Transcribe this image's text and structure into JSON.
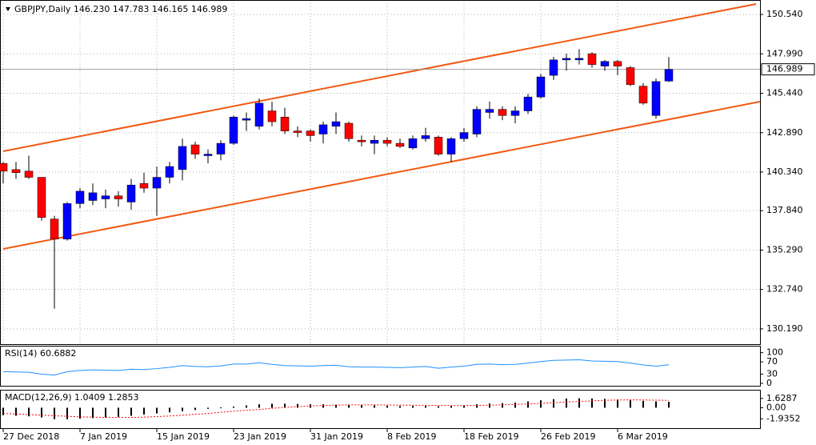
{
  "chart_data": [
    {
      "type": "candlestick",
      "title": "GBPJPY,Daily  146.230 147.783 146.165 146.989",
      "categories": [
        "27 Dec 2018",
        null,
        null,
        null,
        null,
        null,
        "7 Jan 2019",
        null,
        null,
        null,
        null,
        null,
        "15 Jan 2019",
        null,
        null,
        null,
        null,
        null,
        "23 Jan 2019",
        null,
        null,
        null,
        null,
        null,
        "31 Jan 2019",
        null,
        null,
        null,
        null,
        null,
        "8 Feb 2019",
        null,
        null,
        null,
        null,
        null,
        "18 Feb 2019",
        null,
        null,
        null,
        null,
        null,
        "26 Feb 2019",
        null,
        null,
        null,
        null,
        null,
        "6 Mar 2019",
        null,
        null,
        null,
        null
      ],
      "open": [
        140.9,
        140.5,
        140.4,
        140.0,
        137.3,
        136.0,
        138.3,
        138.5,
        138.6,
        138.8,
        138.4,
        139.6,
        139.3,
        140.0,
        140.5,
        142.1,
        141.4,
        141.5,
        142.2,
        143.7,
        143.3,
        144.3,
        143.9,
        143.0,
        143.0,
        142.8,
        143.3,
        143.5,
        142.4,
        142.2,
        142.4,
        142.2,
        141.9,
        142.5,
        142.6,
        141.5,
        142.5,
        142.8,
        144.2,
        144.4,
        144.0,
        144.3,
        145.2,
        146.6,
        147.6,
        147.6,
        148.0,
        147.2,
        147.5,
        147.1,
        145.9,
        144.0,
        146.23
      ],
      "high": [
        141.0,
        141.0,
        141.4,
        140.0,
        137.5,
        138.4,
        139.3,
        139.6,
        139.2,
        139.1,
        139.9,
        140.3,
        140.7,
        141.0,
        142.5,
        142.3,
        141.8,
        142.4,
        144.0,
        144.2,
        145.1,
        144.9,
        144.5,
        143.3,
        143.1,
        143.6,
        144.2,
        143.6,
        142.7,
        142.7,
        142.6,
        142.5,
        142.7,
        143.2,
        142.7,
        142.6,
        143.2,
        144.6,
        144.9,
        144.6,
        144.6,
        145.4,
        146.7,
        147.8,
        148.0,
        148.3,
        148.1,
        147.6,
        147.6,
        147.2,
        146.1,
        146.4,
        147.783
      ],
      "low": [
        139.6,
        139.9,
        139.9,
        137.2,
        131.5,
        135.9,
        138.0,
        138.2,
        138.0,
        138.1,
        137.9,
        139.0,
        137.5,
        139.6,
        139.8,
        141.2,
        140.9,
        141.1,
        142.1,
        143.0,
        143.1,
        143.3,
        142.8,
        142.6,
        142.3,
        142.2,
        142.8,
        142.3,
        142.0,
        141.5,
        142.0,
        141.9,
        141.8,
        142.3,
        141.4,
        141.0,
        142.3,
        142.6,
        143.8,
        143.7,
        143.5,
        144.1,
        145.1,
        146.3,
        146.9,
        147.3,
        147.1,
        146.9,
        146.6,
        145.9,
        144.7,
        143.8,
        146.165
      ],
      "close": [
        140.4,
        140.3,
        140.0,
        137.4,
        136.0,
        138.3,
        139.1,
        139.0,
        138.8,
        138.6,
        139.5,
        139.3,
        140.0,
        140.7,
        142.0,
        141.5,
        141.5,
        142.2,
        143.9,
        143.8,
        144.8,
        143.6,
        143.0,
        142.9,
        142.7,
        143.4,
        143.6,
        142.5,
        142.3,
        142.4,
        142.2,
        142.0,
        142.5,
        142.7,
        141.5,
        142.5,
        142.9,
        144.4,
        144.4,
        144.0,
        144.3,
        145.2,
        146.5,
        147.6,
        147.7,
        147.7,
        147.3,
        147.5,
        147.2,
        146.0,
        144.8,
        146.2,
        146.989
      ],
      "up_color": "#0000ff",
      "down_color": "#ff0000",
      "last_price": {
        "value": 146.989,
        "label": "146.989"
      },
      "ylim": [
        129.2,
        151.27
      ],
      "yticks": [
        {
          "value": 150.54,
          "label": "150.540"
        },
        {
          "value": 147.99,
          "label": "147.990"
        },
        {
          "value": 145.44,
          "label": "145.440"
        },
        {
          "value": 142.89,
          "label": "142.890"
        },
        {
          "value": 140.34,
          "label": "140.340"
        },
        {
          "value": 137.84,
          "label": "137.840"
        },
        {
          "value": 135.29,
          "label": "135.290"
        },
        {
          "value": 132.74,
          "label": "132.740"
        },
        {
          "value": 130.19,
          "label": "130.190"
        }
      ],
      "grid": true
    },
    {
      "type": "line",
      "title": "RSI(14) 60.6882",
      "color": "#1e90ff",
      "values": [
        38,
        37,
        36,
        30,
        27,
        38,
        42,
        44,
        43,
        42,
        46,
        45,
        48,
        52,
        58,
        55,
        54,
        57,
        63,
        63,
        67,
        62,
        58,
        57,
        56,
        58,
        59,
        54,
        53,
        53,
        52,
        51,
        53,
        55,
        49,
        53,
        56,
        62,
        63,
        61,
        62,
        66,
        71,
        75,
        76,
        77,
        73,
        72,
        71,
        66,
        60,
        56,
        60.6882
      ],
      "ylim": [
        -8,
        120
      ],
      "yticks": [
        100,
        70,
        30,
        0
      ]
    },
    {
      "type": "macd",
      "title": "MACD(12,26,9) 1.0409 1.2853",
      "color": "#000000",
      "signal_color": "#ff0000",
      "values": [
        -1.3,
        -1.4,
        -1.5,
        -1.7,
        -2.0,
        -2.0,
        -1.9,
        -1.8,
        -1.7,
        -1.6,
        -1.4,
        -1.2,
        -1.0,
        -0.8,
        -0.6,
        -0.4,
        -0.2,
        0.05,
        0.2,
        0.4,
        0.6,
        0.7,
        0.7,
        0.65,
        0.6,
        0.6,
        0.55,
        0.5,
        0.45,
        0.4,
        0.35,
        0.3,
        0.3,
        0.3,
        0.25,
        0.3,
        0.4,
        0.6,
        0.75,
        0.8,
        0.9,
        1.1,
        1.3,
        1.5,
        1.6,
        1.65,
        1.6,
        1.55,
        1.45,
        1.35,
        1.2,
        1.1,
        1.0409
      ],
      "signal": [
        -1.0,
        -1.1,
        -1.2,
        -1.3,
        -1.4,
        -1.5,
        -1.6,
        -1.65,
        -1.7,
        -1.7,
        -1.7,
        -1.65,
        -1.55,
        -1.45,
        -1.3,
        -1.15,
        -1.0,
        -0.8,
        -0.6,
        -0.45,
        -0.3,
        -0.1,
        0.05,
        0.2,
        0.3,
        0.4,
        0.45,
        0.5,
        0.5,
        0.5,
        0.48,
        0.46,
        0.44,
        0.42,
        0.4,
        0.38,
        0.38,
        0.4,
        0.45,
        0.5,
        0.58,
        0.66,
        0.76,
        0.88,
        1.0,
        1.1,
        1.2,
        1.3,
        1.35,
        1.38,
        1.36,
        1.32,
        1.2853
      ],
      "ylim": [
        -3.58,
        3.0
      ],
      "yticks": [
        1.6287,
        {
          "value": 0,
          "label": "0.00"
        },
        -1.9352
      ]
    }
  ]
}
